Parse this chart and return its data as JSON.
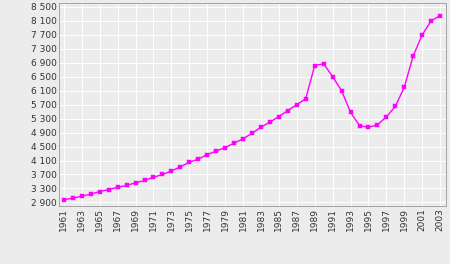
{
  "years": [
    1961,
    1962,
    1963,
    1964,
    1965,
    1966,
    1967,
    1968,
    1969,
    1970,
    1971,
    1972,
    1973,
    1974,
    1975,
    1976,
    1977,
    1978,
    1979,
    1980,
    1981,
    1982,
    1983,
    1984,
    1985,
    1986,
    1987,
    1988,
    1989,
    1990,
    1991,
    1992,
    1993,
    1994,
    1995,
    1996,
    1997,
    1998,
    1999,
    2000,
    2001,
    2002,
    2003
  ],
  "population": [
    2980,
    3020,
    3080,
    3140,
    3210,
    3270,
    3330,
    3390,
    3460,
    3530,
    3620,
    3700,
    3800,
    3920,
    4050,
    4140,
    4270,
    4370,
    4470,
    4600,
    4720,
    4880,
    5050,
    5200,
    5360,
    5530,
    5700,
    5870,
    6820,
    6870,
    6500,
    6100,
    5480,
    5100,
    5050,
    5120,
    5350,
    5650,
    6200,
    7100,
    7700,
    8100,
    8250
  ],
  "line_color": "#ff00ff",
  "marker_color": "#ff00ff",
  "marker": "s",
  "marker_size": 2.5,
  "line_width": 1.0,
  "bg_color": "#ececec",
  "grid_color": "#ffffff",
  "ytick_labels": [
    "2 900",
    "3 300",
    "3 700",
    "4 100",
    "4 500",
    "4 900",
    "5 300",
    "5 700",
    "6 100",
    "6 500",
    "6 900",
    "7 300",
    "7 700",
    "8 100",
    "8 500"
  ],
  "ytick_values": [
    2900,
    3300,
    3700,
    4100,
    4500,
    4900,
    5300,
    5700,
    6100,
    6500,
    6900,
    7300,
    7700,
    8100,
    8500
  ],
  "xtick_years": [
    1961,
    1963,
    1965,
    1967,
    1969,
    1971,
    1973,
    1975,
    1977,
    1979,
    1981,
    1983,
    1985,
    1987,
    1989,
    1991,
    1993,
    1995,
    1997,
    1999,
    2001,
    2003
  ],
  "ylim": [
    2800,
    8620
  ],
  "xlim": [
    1960.4,
    2003.6
  ],
  "tick_fontsize": 6.5,
  "tick_color": "#333333",
  "spine_color": "#999999"
}
